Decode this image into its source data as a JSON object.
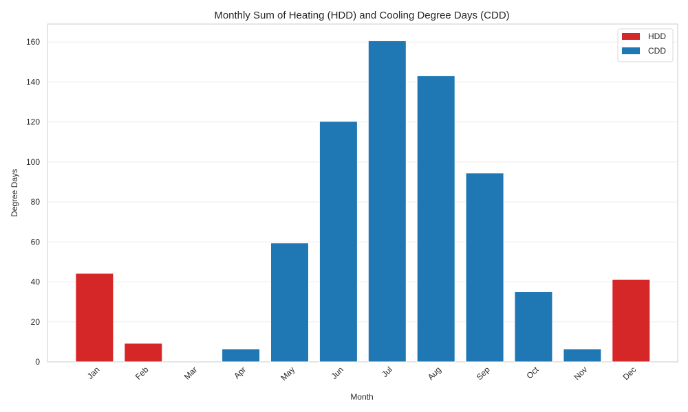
{
  "chart_data": {
    "type": "bar",
    "title": "Monthly Sum of Heating (HDD) and Cooling Degree Days (CDD)",
    "xlabel": "Month",
    "ylabel": "Degree Days",
    "categories": [
      "Jan",
      "Feb",
      "Mar",
      "Apr",
      "May",
      "Jun",
      "Jul",
      "Aug",
      "Sep",
      "Oct",
      "Nov",
      "Dec"
    ],
    "series": [
      {
        "name": "HDD",
        "color": "#d62728",
        "values": [
          44.3,
          9.3,
          0,
          0,
          0,
          0,
          0,
          0,
          0,
          0,
          0,
          41.2
        ]
      },
      {
        "name": "CDD",
        "color": "#1f77b4",
        "values": [
          0,
          0,
          0,
          6.5,
          59.5,
          120.3,
          160.6,
          143.1,
          94.5,
          35.2,
          6.5,
          0
        ]
      }
    ],
    "ylim": [
      0,
      169
    ],
    "yticks": [
      0,
      20,
      40,
      60,
      80,
      100,
      120,
      140,
      160
    ],
    "grid": "horizontal",
    "legend_position": "top-right"
  }
}
